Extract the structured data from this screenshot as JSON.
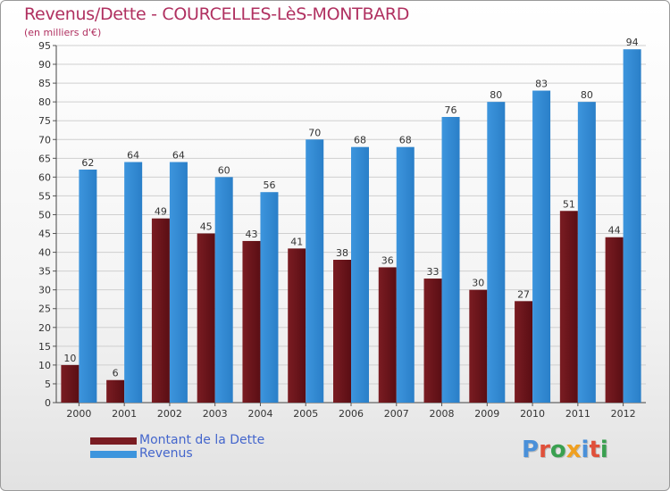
{
  "title": "Revenus/Dette - COURCELLES-LèS-MONTBARD",
  "subtitle": "(en milliers d'€)",
  "logo": {
    "text": "Proxiti",
    "letter_colors": [
      "#4a90d9",
      "#e0503a",
      "#3aa050",
      "#f0a020",
      "#4a90d9",
      "#e0503a",
      "#3aa050"
    ]
  },
  "chart_data": {
    "type": "bar",
    "categories": [
      "2000",
      "2001",
      "2002",
      "2003",
      "2004",
      "2005",
      "2006",
      "2007",
      "2008",
      "2009",
      "2010",
      "2011",
      "2012"
    ],
    "series": [
      {
        "name": "Montant de la Dette",
        "color": "#7a1c22",
        "values": [
          10,
          6,
          49,
          45,
          43,
          41,
          38,
          36,
          33,
          30,
          27,
          51,
          44
        ]
      },
      {
        "name": "Revenus",
        "color": "#3d95dd",
        "values": [
          62,
          64,
          64,
          60,
          56,
          70,
          68,
          68,
          76,
          80,
          83,
          80,
          94
        ]
      }
    ],
    "yticks": [
      0,
      5,
      10,
      15,
      20,
      25,
      30,
      35,
      40,
      45,
      50,
      55,
      60,
      65,
      70,
      75,
      80,
      85,
      90,
      95
    ],
    "ylim": [
      0,
      95
    ],
    "grid": true,
    "legend_position": "bottom-left"
  }
}
